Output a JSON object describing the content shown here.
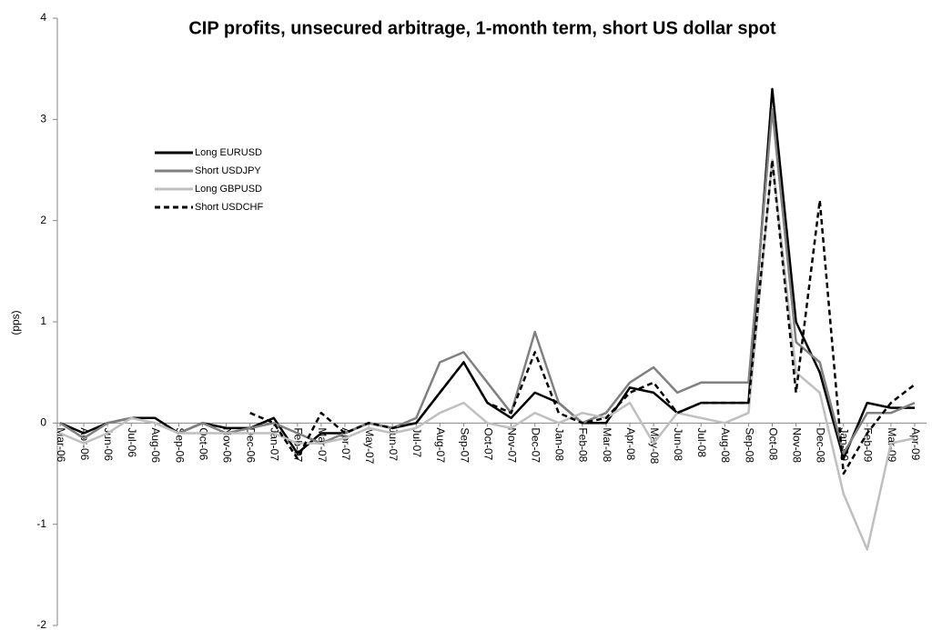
{
  "chart_data": {
    "type": "line",
    "title": "CIP profits, unsecured arbitrage, 1-month term, short US dollar spot",
    "y_label": "(pps)",
    "categories": [
      "Mar-06",
      "Apr-06",
      "Jun-06",
      "Jul-06",
      "Aug-06",
      "Sep-06",
      "Oct-06",
      "Nov-06",
      "Dec-06",
      "Jan-07",
      "Feb-07",
      "Mar-07",
      "Apr-07",
      "May-07",
      "Jun-07",
      "Jul-07",
      "Aug-07",
      "Sep-07",
      "Oct-07",
      "Nov-07",
      "Dec-07",
      "Jan-08",
      "Feb-08",
      "Mar-08",
      "Apr-08",
      "May-08",
      "Jun-08",
      "Jul-08",
      "Aug-08",
      "Sep-08",
      "Oct-08",
      "Nov-08",
      "Dec-08",
      "Jan-09",
      "Feb-09",
      "Mar-09",
      "Apr-09"
    ],
    "series": [
      {
        "name": "Long EURUSD",
        "color": "#000000",
        "dash": false,
        "values": [
          0,
          -0.1,
          0,
          0.05,
          0.05,
          -0.1,
          0,
          -0.05,
          -0.05,
          0.05,
          -0.3,
          -0.1,
          -0.1,
          0,
          -0.05,
          0,
          0.3,
          0.6,
          0.2,
          0.05,
          0.3,
          0.2,
          0,
          0,
          0.35,
          0.3,
          0.1,
          0.2,
          0.2,
          0.2,
          3.3,
          1.0,
          0.5,
          -0.35,
          0.2,
          0.15,
          0.15
        ]
      },
      {
        "name": "Short USDJPY",
        "color": "#808080",
        "dash": false,
        "values": [
          0,
          -0.15,
          0,
          0.05,
          0,
          -0.1,
          0,
          -0.1,
          -0.05,
          0,
          -0.1,
          -0.2,
          -0.1,
          0,
          -0.05,
          0.05,
          0.6,
          0.7,
          0.4,
          0.1,
          0.9,
          0.2,
          0,
          0.1,
          0.4,
          0.55,
          0.3,
          0.4,
          0.4,
          0.4,
          3.1,
          0.8,
          0.6,
          -0.3,
          0.1,
          0.1,
          0.2
        ]
      },
      {
        "name": "Long GBPUSD",
        "color": "#bfbfbf",
        "dash": false,
        "values": [
          -0.1,
          -0.2,
          -0.1,
          0.05,
          0,
          -0.1,
          -0.1,
          -0.1,
          -0.1,
          -0.1,
          -0.2,
          -0.2,
          -0.15,
          -0.05,
          -0.1,
          -0.05,
          0.1,
          0.2,
          0,
          -0.05,
          0.1,
          0,
          0.1,
          0.05,
          0.2,
          -0.2,
          0.1,
          0.05,
          0,
          0.1,
          2.6,
          0.5,
          0.3,
          -0.7,
          -1.25,
          -0.2,
          -0.15
        ]
      },
      {
        "name": "Short USDCHF",
        "color": "#000000",
        "dash": true,
        "values": [
          null,
          null,
          null,
          null,
          null,
          null,
          null,
          null,
          0.1,
          0,
          -0.35,
          0.1,
          -0.1,
          0,
          -0.05,
          0,
          0.3,
          0.6,
          0.2,
          0.1,
          0.7,
          0.1,
          0,
          0.05,
          0.3,
          0.4,
          0.1,
          0.2,
          0.2,
          0.2,
          2.6,
          0.3,
          2.2,
          -0.5,
          -0.1,
          0.2,
          0.38
        ]
      }
    ],
    "ylim": [
      -2,
      4
    ],
    "yticks": [
      -2,
      -1,
      0,
      1,
      2,
      3,
      4
    ]
  }
}
